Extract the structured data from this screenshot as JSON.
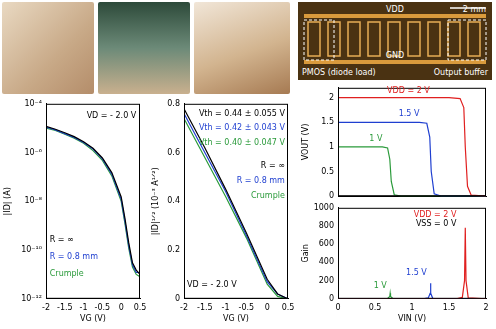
{
  "chart_data": [
    {
      "type": "line",
      "x_label": "VG (V)",
      "y_label": "|ID| (A)",
      "log": "y",
      "grid": false,
      "legend": "lower left",
      "annotations": [
        {
          "text": "VD = - 2.0 V",
          "color": "#000000"
        }
      ],
      "x": [
        -2,
        -1.75,
        -1.5,
        -1.25,
        -1,
        -0.75,
        -0.5,
        -0.25,
        0,
        0.1,
        0.2,
        0.3,
        0.4,
        0.5
      ],
      "xlim": [
        -2,
        0.5
      ],
      "xticks": [
        -2,
        -1.5,
        -1,
        -0.5,
        0,
        0.5
      ],
      "ylim": [
        1e-12,
        0.0001
      ],
      "yticks": [
        {
          "value": 1e-12,
          "label": "10⁻¹²"
        },
        {
          "value": 1e-10,
          "label": "10⁻¹⁰"
        },
        {
          "value": 1e-08,
          "label": "10⁻⁸"
        },
        {
          "value": 1e-06,
          "label": "10⁻⁶"
        },
        {
          "value": 0.0001,
          "label": "10⁻⁴"
        }
      ],
      "series": [
        {
          "name": "R = ∞",
          "color": "#000000",
          "values": [
            1.2e-05,
            9e-06,
            6.5e-06,
            4.5e-06,
            2.8e-06,
            1.5e-06,
            6e-07,
            1.5e-07,
            1.5e-08,
            2e-09,
            2e-10,
            3e-11,
            1.5e-11,
            1e-11
          ]
        },
        {
          "name": "R = 0.8 mm",
          "color": "#1f3fd0",
          "values": [
            1.1e-05,
            8.5e-06,
            6e-06,
            4.2e-06,
            2.6e-06,
            1.4e-06,
            5.5e-07,
            1.3e-07,
            1.2e-08,
            1.5e-09,
            1.5e-10,
            2.5e-11,
            1.2e-11,
            1.2e-11
          ]
        },
        {
          "name": "Crumple",
          "color": "#2a9a3a",
          "values": [
            1e-05,
            8e-06,
            5.6e-06,
            3.9e-06,
            2.4e-06,
            1.2e-06,
            4.8e-07,
            1.1e-07,
            1e-08,
            1.2e-09,
            1.2e-10,
            2e-11,
            1e-11,
            8e-12
          ]
        }
      ]
    },
    {
      "type": "line",
      "x_label": "VG (V)",
      "y_label": "|ID|¹ᐟ² (10⁻³ A¹ᐟ²)",
      "grid": false,
      "legend": "upper right",
      "annotations": [
        {
          "text": "Vth = 0.44 ± 0.055 V",
          "color": "#000000"
        },
        {
          "text": "Vth = 0.42 ± 0.043 V",
          "color": "#1f3fd0"
        },
        {
          "text": "Vth = 0.40 ± 0.047 V",
          "color": "#2a9a3a"
        },
        {
          "text": "VD = - 2.0 V",
          "color": "#000000"
        }
      ],
      "x": [
        -2,
        -1.5,
        -1,
        -0.5,
        0,
        0.25,
        0.5
      ],
      "xlim": [
        -2,
        0.5
      ],
      "xticks": [
        -2,
        -1.5,
        -1,
        -0.5,
        0,
        0.5
      ],
      "ylim": [
        0,
        0.8
      ],
      "yticks": [
        0,
        0.2,
        0.4,
        0.6,
        0.8
      ],
      "series": [
        {
          "name": "R = ∞",
          "color": "#000000",
          "values": [
            0.78,
            0.62,
            0.45,
            0.27,
            0.08,
            0.02,
            0
          ]
        },
        {
          "name": "R = 0.8 mm",
          "color": "#1f3fd0",
          "values": [
            0.76,
            0.6,
            0.44,
            0.26,
            0.07,
            0.02,
            0
          ]
        },
        {
          "name": "Crumple",
          "color": "#2a9a3a",
          "values": [
            0.74,
            0.58,
            0.42,
            0.25,
            0.06,
            0.01,
            0
          ]
        }
      ]
    },
    {
      "type": "line",
      "y_label": "VOUT (V)",
      "grid": false,
      "tick_labels": "y",
      "xlim": [
        0,
        2
      ],
      "xticks": [
        0,
        0.5,
        1,
        1.5,
        2
      ],
      "ylim": [
        0,
        2.2
      ],
      "yticks": [
        0,
        0.5,
        1,
        1.5,
        2
      ],
      "series": [
        {
          "name": "VDD = 2 V",
          "color": "#e02020",
          "x": [
            0,
            1.5,
            1.65,
            1.7,
            1.72,
            1.75,
            1.8,
            2
          ],
          "values": [
            2,
            2,
            1.98,
            1.8,
            1,
            0.2,
            0.02,
            0
          ]
        },
        {
          "name": "1.5 V",
          "color": "#1f3fd0",
          "x": [
            0,
            1.1,
            1.2,
            1.24,
            1.26,
            1.3,
            1.4,
            2
          ],
          "values": [
            1.5,
            1.5,
            1.48,
            1.2,
            0.5,
            0.05,
            0,
            0
          ]
        },
        {
          "name": "1 V",
          "color": "#2a9a3a",
          "x": [
            0,
            0.6,
            0.67,
            0.7,
            0.72,
            0.76,
            0.85,
            2
          ],
          "values": [
            1,
            1,
            0.98,
            0.75,
            0.3,
            0.03,
            0,
            0
          ]
        }
      ]
    },
    {
      "type": "line",
      "x_label": "VIN (V)",
      "y_label": "Gain",
      "grid": false,
      "annotations": [
        {
          "text": "VSS = 0 V",
          "color": "#000000"
        }
      ],
      "xlim": [
        0,
        2
      ],
      "xticks": [
        0,
        0.5,
        1,
        1.5,
        2
      ],
      "ylim": [
        0,
        1000
      ],
      "yticks": [
        0,
        200,
        400,
        600,
        800,
        1000
      ],
      "series": [
        {
          "name": "VDD = 2 V",
          "color": "#e02020",
          "x": [
            0,
            1.6,
            1.68,
            1.71,
            1.72,
            1.73,
            1.76,
            2
          ],
          "values": [
            0,
            0,
            15,
            200,
            780,
            200,
            10,
            0
          ]
        },
        {
          "name": "1.5 V",
          "color": "#1f3fd0",
          "x": [
            0,
            1.15,
            1.22,
            1.245,
            1.25,
            1.255,
            1.28,
            2
          ],
          "values": [
            0,
            0,
            10,
            60,
            170,
            60,
            5,
            0
          ]
        },
        {
          "name": "1 V",
          "color": "#2a9a3a",
          "x": [
            0,
            0.6,
            0.67,
            0.7,
            0.705,
            0.71,
            0.74,
            2
          ],
          "values": [
            0,
            0,
            5,
            25,
            60,
            25,
            3,
            0
          ]
        }
      ]
    }
  ],
  "circuit_photo": {
    "labels": [
      "VDD",
      "GND",
      "PMOS (diode load)",
      "Output buffer",
      "2 mm"
    ]
  }
}
